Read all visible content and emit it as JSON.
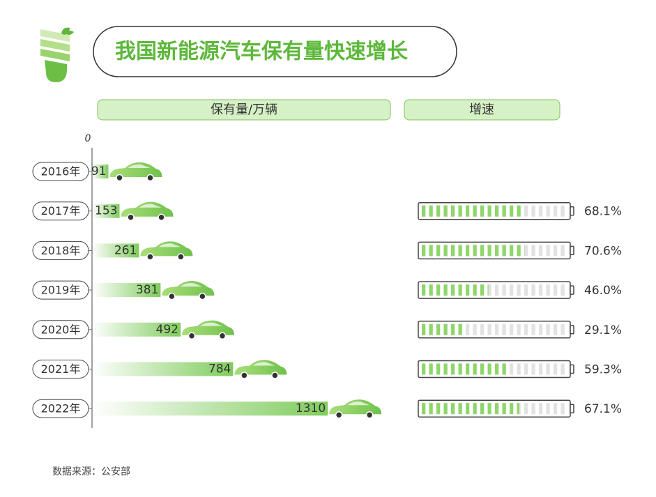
{
  "chart_data": [
    {
      "type": "bar",
      "title": "我国新能源汽车保有量快速增长",
      "value_axis_label": "保有量/万辆",
      "categories": [
        "2016年",
        "2017年",
        "2018年",
        "2019年",
        "2020年",
        "2021年",
        "2022年"
      ],
      "values": [
        91,
        153,
        261,
        381,
        492,
        784,
        1310
      ],
      "color": "#7fcc5c",
      "xlim": [
        0,
        1600
      ],
      "xticks": [
        0
      ]
    },
    {
      "type": "gauge",
      "title": "增速",
      "values": [
        null,
        68.1,
        70.6,
        46.0,
        29.1,
        59.3,
        67.1
      ],
      "value_labels": [
        null,
        "68.1%",
        "70.6%",
        "46.0%",
        "29.1%",
        "59.3%",
        "67.1%"
      ],
      "color": "#8fd66a",
      "ylim": [
        0,
        100
      ]
    }
  ],
  "source": "数据来源：公安部"
}
